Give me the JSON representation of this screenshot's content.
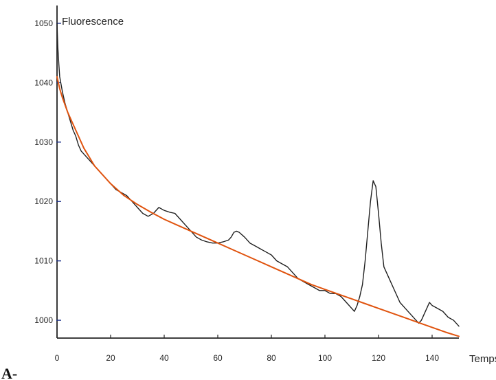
{
  "chart_data": {
    "type": "line",
    "panel_label": "A-",
    "xlabel": "Temps (s)",
    "ylabel": "Fluorescence",
    "xlim": [
      0,
      150
    ],
    "ylim": [
      997,
      1053
    ],
    "x_ticks": [
      0,
      20,
      40,
      60,
      80,
      100,
      120,
      140
    ],
    "y_ticks": [
      1000,
      1010,
      1020,
      1030,
      1040,
      1050
    ],
    "grid": false,
    "legend": "none",
    "series": [
      {
        "color": "#1f1f1f",
        "points": [
          [
            0,
            1050
          ],
          [
            0.3,
            1046
          ],
          [
            0.7,
            1043
          ],
          [
            1,
            1041
          ],
          [
            2,
            1038.5
          ],
          [
            3,
            1036.5
          ],
          [
            4,
            1035
          ],
          [
            5,
            1033.5
          ],
          [
            6,
            1032
          ],
          [
            7,
            1031
          ],
          [
            8,
            1029.5
          ],
          [
            9,
            1028.5
          ],
          [
            10,
            1028
          ],
          [
            12,
            1027
          ],
          [
            14,
            1026
          ],
          [
            16,
            1025
          ],
          [
            18,
            1024
          ],
          [
            20,
            1023
          ],
          [
            22,
            1022
          ],
          [
            24,
            1021.5
          ],
          [
            26,
            1021
          ],
          [
            28,
            1020
          ],
          [
            30,
            1019
          ],
          [
            32,
            1018
          ],
          [
            34,
            1017.5
          ],
          [
            36,
            1018
          ],
          [
            38,
            1019
          ],
          [
            40,
            1018.5
          ],
          [
            42,
            1018.2
          ],
          [
            44,
            1018
          ],
          [
            46,
            1017
          ],
          [
            48,
            1016
          ],
          [
            50,
            1015
          ],
          [
            52,
            1014
          ],
          [
            54,
            1013.5
          ],
          [
            56,
            1013.2
          ],
          [
            58,
            1013
          ],
          [
            60,
            1013
          ],
          [
            62,
            1013.2
          ],
          [
            64,
            1013.5
          ],
          [
            65,
            1014
          ],
          [
            66,
            1014.8
          ],
          [
            67,
            1015
          ],
          [
            68,
            1014.8
          ],
          [
            70,
            1014
          ],
          [
            72,
            1013
          ],
          [
            74,
            1012.5
          ],
          [
            76,
            1012
          ],
          [
            78,
            1011.5
          ],
          [
            80,
            1011
          ],
          [
            82,
            1010
          ],
          [
            84,
            1009.5
          ],
          [
            86,
            1009
          ],
          [
            88,
            1008
          ],
          [
            90,
            1007
          ],
          [
            92,
            1006.5
          ],
          [
            94,
            1006
          ],
          [
            96,
            1005.5
          ],
          [
            98,
            1005
          ],
          [
            100,
            1005
          ],
          [
            102,
            1004.5
          ],
          [
            104,
            1004.5
          ],
          [
            106,
            1004
          ],
          [
            108,
            1003
          ],
          [
            110,
            1002
          ],
          [
            111,
            1001.5
          ],
          [
            112,
            1002.5
          ],
          [
            113,
            1004
          ],
          [
            114,
            1006
          ],
          [
            115,
            1010
          ],
          [
            116,
            1015
          ],
          [
            117,
            1020
          ],
          [
            118,
            1023.5
          ],
          [
            119,
            1022.5
          ],
          [
            120,
            1018
          ],
          [
            121,
            1013
          ],
          [
            122,
            1009
          ],
          [
            123,
            1008
          ],
          [
            124,
            1007
          ],
          [
            126,
            1005
          ],
          [
            128,
            1003
          ],
          [
            130,
            1002
          ],
          [
            132,
            1001
          ],
          [
            134,
            1000
          ],
          [
            135,
            999.5
          ],
          [
            136,
            1000
          ],
          [
            138,
            1002
          ],
          [
            139,
            1003
          ],
          [
            140,
            1002.5
          ],
          [
            142,
            1002
          ],
          [
            144,
            1001.5
          ],
          [
            146,
            1000.5
          ],
          [
            148,
            1000
          ],
          [
            150,
            999
          ]
        ]
      },
      {
        "color": "#e0530e",
        "points": [
          [
            0,
            1041
          ],
          [
            1,
            1039
          ],
          [
            2,
            1037.5
          ],
          [
            4,
            1035
          ],
          [
            6,
            1033
          ],
          [
            8,
            1031
          ],
          [
            10,
            1029
          ],
          [
            12,
            1027.5
          ],
          [
            14,
            1026
          ],
          [
            16,
            1025
          ],
          [
            18,
            1024
          ],
          [
            20,
            1023
          ],
          [
            25,
            1021
          ],
          [
            30,
            1019.5
          ],
          [
            35,
            1018.2
          ],
          [
            40,
            1017
          ],
          [
            45,
            1016
          ],
          [
            50,
            1015
          ],
          [
            55,
            1014
          ],
          [
            60,
            1013
          ],
          [
            65,
            1012
          ],
          [
            70,
            1011
          ],
          [
            75,
            1010
          ],
          [
            80,
            1009
          ],
          [
            85,
            1008
          ],
          [
            90,
            1007
          ],
          [
            95,
            1006
          ],
          [
            100,
            1005.2
          ],
          [
            105,
            1004.4
          ],
          [
            110,
            1003.6
          ],
          [
            115,
            1002.8
          ],
          [
            120,
            1002
          ],
          [
            125,
            1001.2
          ],
          [
            130,
            1000.4
          ],
          [
            135,
            999.6
          ],
          [
            140,
            998.8
          ],
          [
            145,
            998
          ],
          [
            150,
            997.3
          ]
        ]
      }
    ]
  }
}
